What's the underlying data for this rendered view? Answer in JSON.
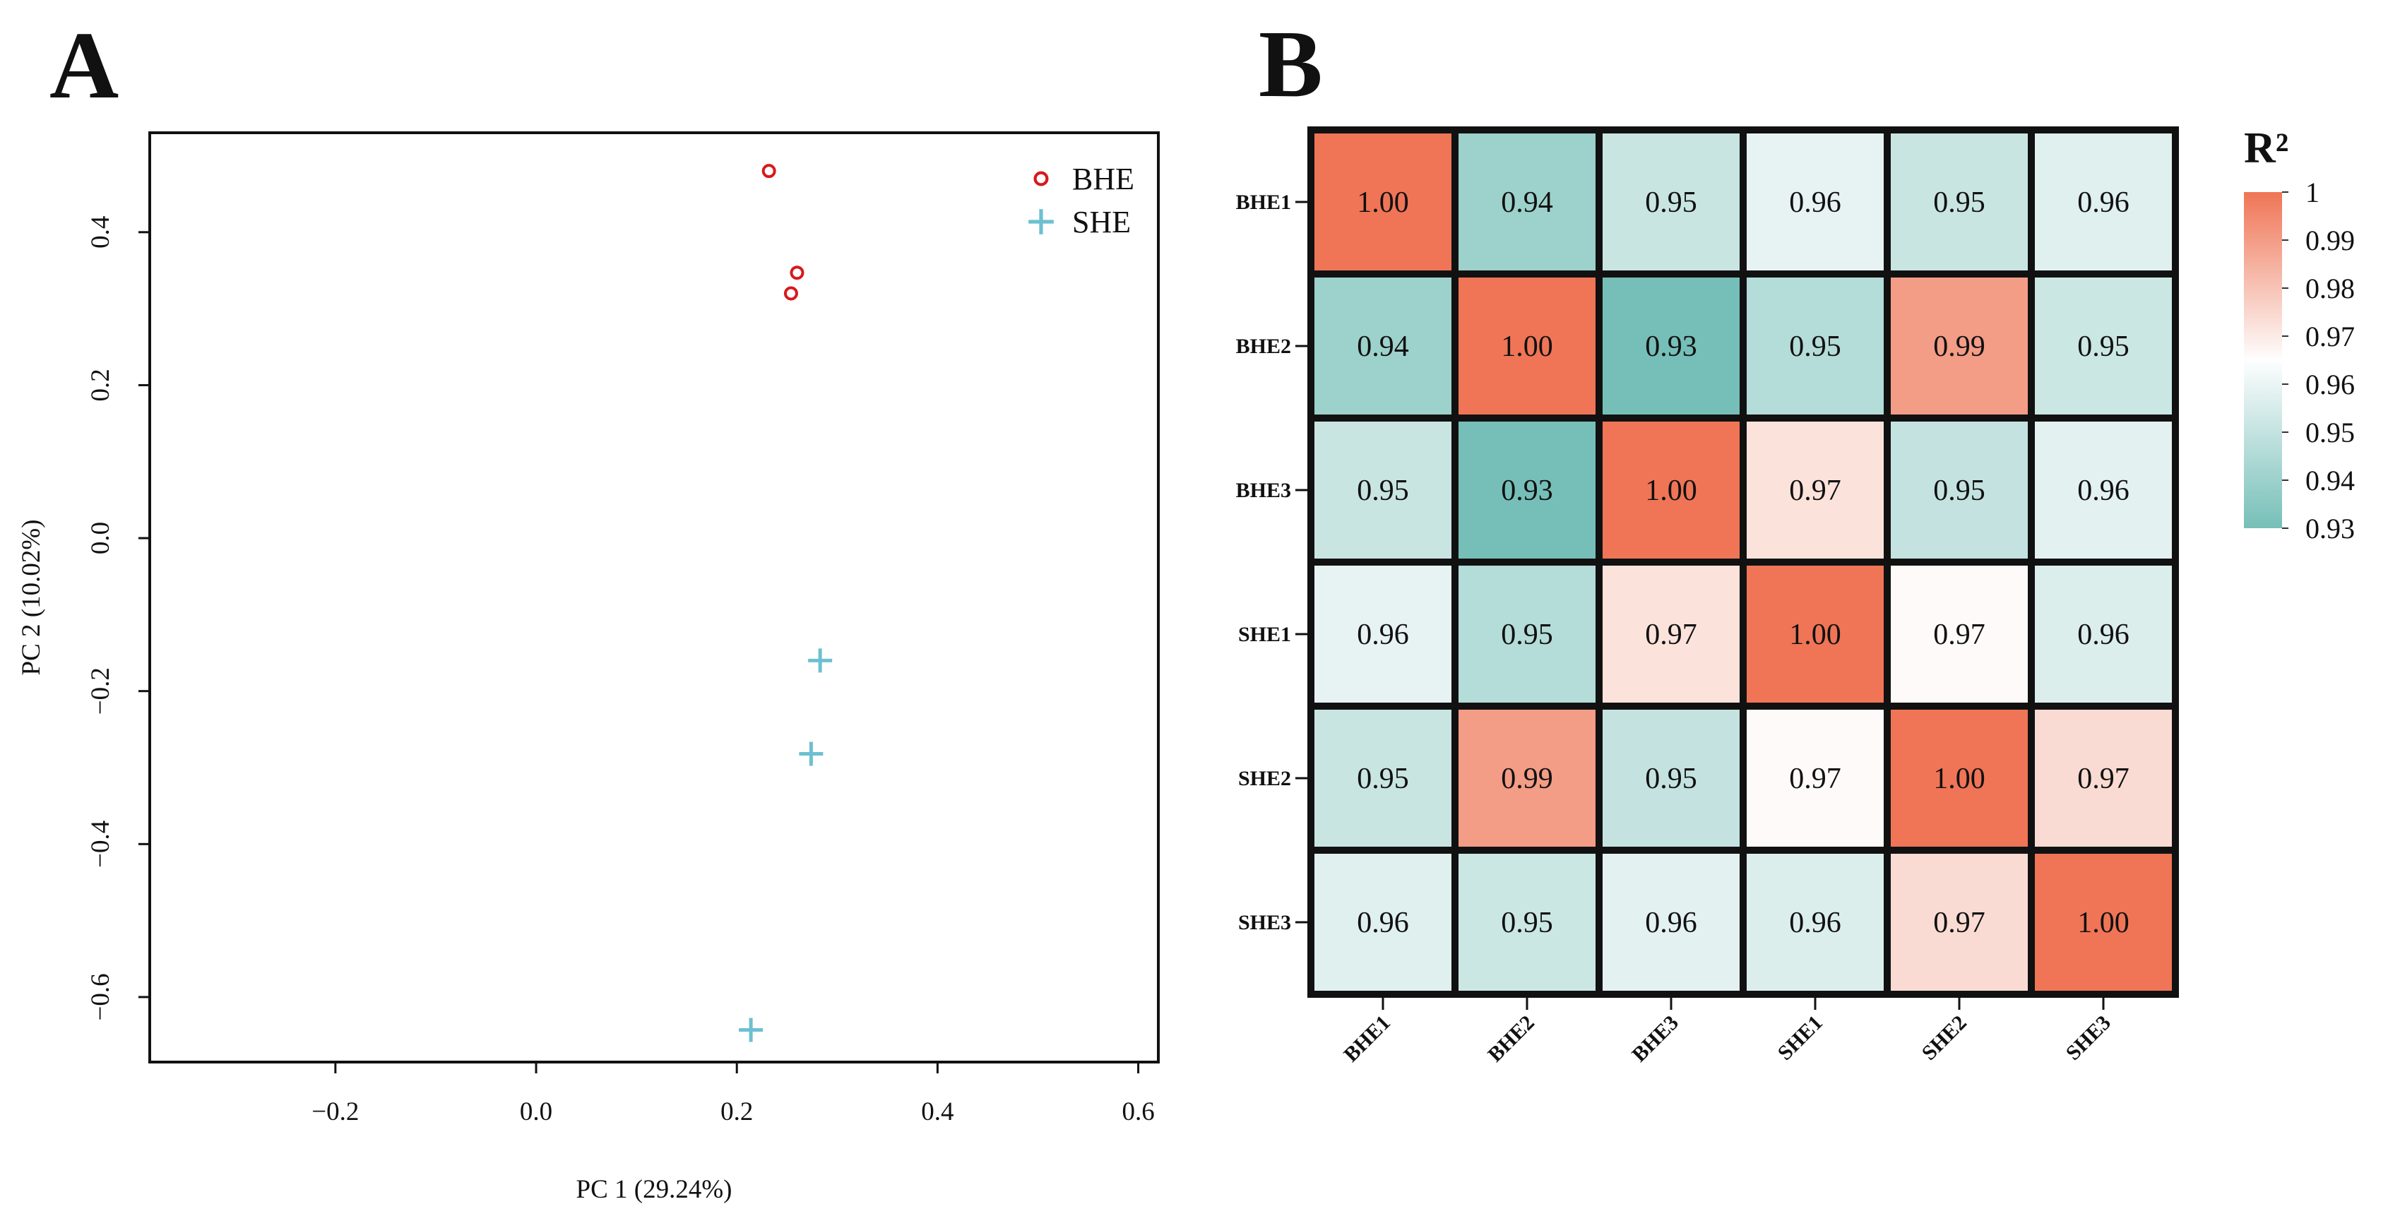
{
  "panels": {
    "a": {
      "letter": "A"
    },
    "b": {
      "letter": "B"
    }
  },
  "chart_data": [
    {
      "type": "scatter",
      "panel": "A",
      "title": "",
      "xlabel": "PC 1 (29.24%)",
      "ylabel": "PC 2 (10.02%)",
      "xlim": [
        -0.385,
        0.62
      ],
      "ylim": [
        -0.685,
        0.53
      ],
      "xticks": [
        -0.2,
        0.0,
        0.2,
        0.4,
        0.6
      ],
      "xtick_labels": [
        "−0.2",
        "0.0",
        "0.2",
        "0.4",
        "0.6"
      ],
      "yticks": [
        -0.6,
        -0.4,
        -0.2,
        0.0,
        0.2,
        0.4
      ],
      "ytick_labels": [
        "−0.6",
        "−0.4",
        "−0.2",
        "0.0",
        "0.2",
        "0.4"
      ],
      "grid": false,
      "legend_position": "top-right",
      "series": [
        {
          "name": "BHE",
          "marker": "circle",
          "color": "#d7191c",
          "points": [
            [
              0.232,
              0.48
            ],
            [
              0.26,
              0.347
            ],
            [
              0.254,
              0.32
            ]
          ]
        },
        {
          "name": "SHE",
          "marker": "plus",
          "color": "#6cc0d0",
          "points": [
            [
              0.283,
              -0.16
            ],
            [
              0.274,
              -0.282
            ],
            [
              0.214,
              -0.643
            ]
          ]
        }
      ]
    },
    {
      "type": "heatmap",
      "panel": "B",
      "title": "",
      "rows": [
        "BHE1",
        "BHE2",
        "BHE3",
        "SHE1",
        "SHE2",
        "SHE3"
      ],
      "cols": [
        "BHE1",
        "BHE2",
        "BHE3",
        "SHE1",
        "SHE2",
        "SHE3"
      ],
      "values": [
        [
          1.0,
          0.94,
          0.95,
          0.96,
          0.95,
          0.96
        ],
        [
          0.94,
          1.0,
          0.93,
          0.95,
          0.99,
          0.95
        ],
        [
          0.95,
          0.93,
          1.0,
          0.97,
          0.95,
          0.96
        ],
        [
          0.96,
          0.95,
          0.97,
          1.0,
          0.97,
          0.96
        ],
        [
          0.95,
          0.99,
          0.95,
          0.97,
          1.0,
          0.97
        ],
        [
          0.96,
          0.95,
          0.96,
          0.96,
          0.97,
          1.0
        ]
      ],
      "shades": [
        [
          1.0,
          0.94,
          0.951,
          0.959,
          0.951,
          0.957
        ],
        [
          0.94,
          1.0,
          0.93,
          0.946,
          0.99,
          0.952
        ],
        [
          0.951,
          0.93,
          1.0,
          0.972,
          0.95,
          0.958
        ],
        [
          0.959,
          0.946,
          0.972,
          1.0,
          0.966,
          0.956
        ],
        [
          0.951,
          0.99,
          0.95,
          0.966,
          1.0,
          0.974
        ],
        [
          0.957,
          0.952,
          0.958,
          0.956,
          0.974,
          1.0
        ]
      ],
      "colorbar": {
        "title": "R²",
        "range": [
          0.93,
          1.0
        ],
        "ticks": [
          1,
          0.99,
          0.98,
          0.97,
          0.96,
          0.95,
          0.94,
          0.93
        ],
        "tick_labels": [
          "1",
          "0.99",
          "0.98",
          "0.97",
          "0.96",
          "0.95",
          "0.94",
          "0.93"
        ],
        "stops": [
          {
            "value": 0.93,
            "color": "#76bfb8"
          },
          {
            "value": 0.965,
            "color": "#fefefe"
          },
          {
            "value": 1.0,
            "color": "#ef7556"
          }
        ]
      }
    }
  ]
}
